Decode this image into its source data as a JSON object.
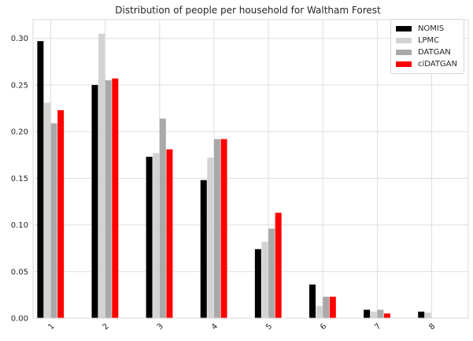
{
  "chart_data": {
    "type": "bar",
    "title": "Distribution of people per household for Waltham Forest",
    "xlabel": "",
    "ylabel": "",
    "categories": [
      "1",
      "2",
      "3",
      "4",
      "5",
      "6",
      "7",
      "8"
    ],
    "ylim": [
      0,
      0.32
    ],
    "yticks": [
      "0.00",
      "0.05",
      "0.10",
      "0.15",
      "0.20",
      "0.25",
      "0.30"
    ],
    "ytick_values": [
      0,
      0.05,
      0.1,
      0.15,
      0.2,
      0.25,
      0.3
    ],
    "grid": true,
    "legend_position": "top-right",
    "series": [
      {
        "name": "NOMIS",
        "color": "#000000",
        "values": [
          0.297,
          0.25,
          0.173,
          0.148,
          0.074,
          0.036,
          0.009,
          0.007
        ]
      },
      {
        "name": "LPMC",
        "color": "#d3d3d3",
        "values": [
          0.231,
          0.305,
          0.177,
          0.172,
          0.082,
          0.013,
          0.007,
          0.006
        ]
      },
      {
        "name": "DATGAN",
        "color": "#a9a9a9",
        "values": [
          0.209,
          0.255,
          0.214,
          0.192,
          0.096,
          0.023,
          0.009,
          0.0
        ]
      },
      {
        "name": "ciDATGAN",
        "color": "#ff0000",
        "values": [
          0.223,
          0.257,
          0.181,
          0.192,
          0.113,
          0.023,
          0.005,
          0.0
        ]
      }
    ]
  }
}
